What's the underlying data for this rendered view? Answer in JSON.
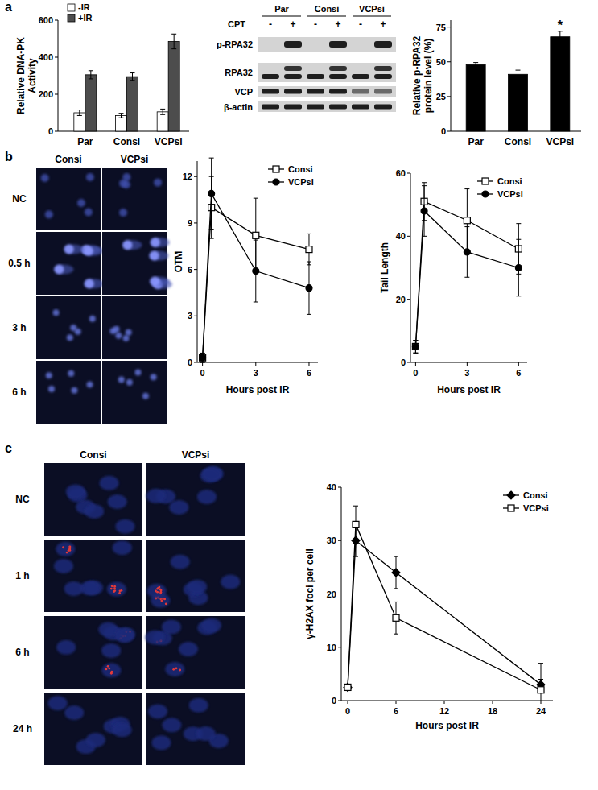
{
  "chart_data": [
    {
      "type": "bar",
      "y_label": "Relative DNA-PK Activity",
      "categories": [
        "Par",
        "Consi",
        "VCPsi"
      ],
      "series": [
        {
          "name": "-IR",
          "color": "#ffffff",
          "values": [
            100,
            85,
            105
          ],
          "errors": [
            15,
            12,
            15
          ]
        },
        {
          "name": "+IR",
          "color": "#4d4d4d",
          "values": [
            305,
            295,
            485
          ],
          "errors": [
            22,
            20,
            40
          ]
        }
      ],
      "ylim": [
        0,
        600
      ],
      "yticks": [
        0,
        200,
        400,
        600
      ],
      "legend": "upper left"
    },
    {
      "type": "bar",
      "y_label": "Relative p-RPA32 protein level (%)",
      "categories": [
        "Par",
        "Consi",
        "VCPsi"
      ],
      "values": [
        48,
        41,
        68
      ],
      "errors": [
        1.5,
        3,
        4
      ],
      "significance": [
        null,
        null,
        "*"
      ],
      "color": "#000000",
      "ylim": [
        0,
        80
      ],
      "yticks": [
        0,
        25,
        50,
        75
      ]
    },
    {
      "type": "line",
      "y_label": "OTM",
      "x_label": "Hours post IR",
      "x": [
        0,
        0.5,
        3,
        6
      ],
      "series": [
        {
          "name": "Consi",
          "color": "#000000",
          "marker": "open-square",
          "values": [
            0.3,
            10,
            8.2,
            7.3
          ],
          "errors": [
            0.3,
            2,
            2.4,
            1
          ]
        },
        {
          "name": "VCPsi",
          "color": "#000000",
          "marker": "filled-circle",
          "values": [
            0.3,
            10.9,
            5.9,
            4.8
          ],
          "errors": [
            0.3,
            2.3,
            2,
            1.7
          ]
        }
      ],
      "xlim": [
        -0.3,
        6.5
      ],
      "xticks": [
        0,
        3,
        6
      ],
      "ylim": [
        0,
        13
      ],
      "yticks": [
        0,
        3,
        6,
        9,
        12
      ],
      "legend": "upper right"
    },
    {
      "type": "line",
      "y_label": "Tail Length",
      "x_label": "Hours post IR",
      "x": [
        0,
        0.5,
        3,
        6
      ],
      "series": [
        {
          "name": "Consi",
          "color": "#000000",
          "marker": "open-square",
          "values": [
            5,
            51,
            45,
            36
          ],
          "errors": [
            2,
            6,
            10,
            8
          ]
        },
        {
          "name": "VCPsi",
          "color": "#000000",
          "marker": "filled-circle",
          "values": [
            5,
            48,
            35,
            30
          ],
          "errors": [
            2,
            8,
            8,
            9
          ]
        }
      ],
      "xlim": [
        -0.3,
        6.5
      ],
      "xticks": [
        0,
        3,
        6
      ],
      "ylim": [
        0,
        60
      ],
      "yticks": [
        0,
        20,
        40,
        60
      ],
      "legend": "upper right"
    },
    {
      "type": "line",
      "y_label": "γ-H2AX foci per cell",
      "x_label": "Hours post IR",
      "x": [
        0,
        1,
        6,
        24
      ],
      "series": [
        {
          "name": "Consi",
          "color": "#000000",
          "marker": "filled-diamond",
          "values": [
            2.5,
            30,
            24,
            3
          ],
          "errors": [
            0.5,
            3,
            3,
            1
          ]
        },
        {
          "name": "VCPsi",
          "color": "#000000",
          "marker": "open-square",
          "values": [
            2.5,
            33,
            15.5,
            2
          ],
          "errors": [
            0.5,
            3.5,
            3,
            5
          ]
        }
      ],
      "xlim": [
        -0.8,
        25.5
      ],
      "xticks": [
        0,
        6,
        12,
        18,
        24
      ],
      "ylim": [
        0,
        40
      ],
      "yticks": [
        0,
        10,
        20,
        30,
        40
      ],
      "legend": "upper right"
    }
  ],
  "figure": {
    "panel_labels": [
      "a",
      "b",
      "c"
    ],
    "blot": {
      "cpt_label": "CPT",
      "groups": [
        "Par",
        "Consi",
        "VCPsi"
      ],
      "treatments": [
        "-",
        "+"
      ],
      "rows": [
        "p-RPA32",
        "RPA32",
        "VCP",
        "β-actin"
      ]
    },
    "micrographs": [
      {
        "columns": [
          "Consi",
          "VCPsi"
        ],
        "rows": [
          "NC",
          "0.5 h",
          "3 h",
          "6 h"
        ]
      },
      {
        "columns": [
          "Consi",
          "VCPsi"
        ],
        "rows": [
          "NC",
          "1 h",
          "6 h",
          "24 h"
        ]
      }
    ]
  }
}
